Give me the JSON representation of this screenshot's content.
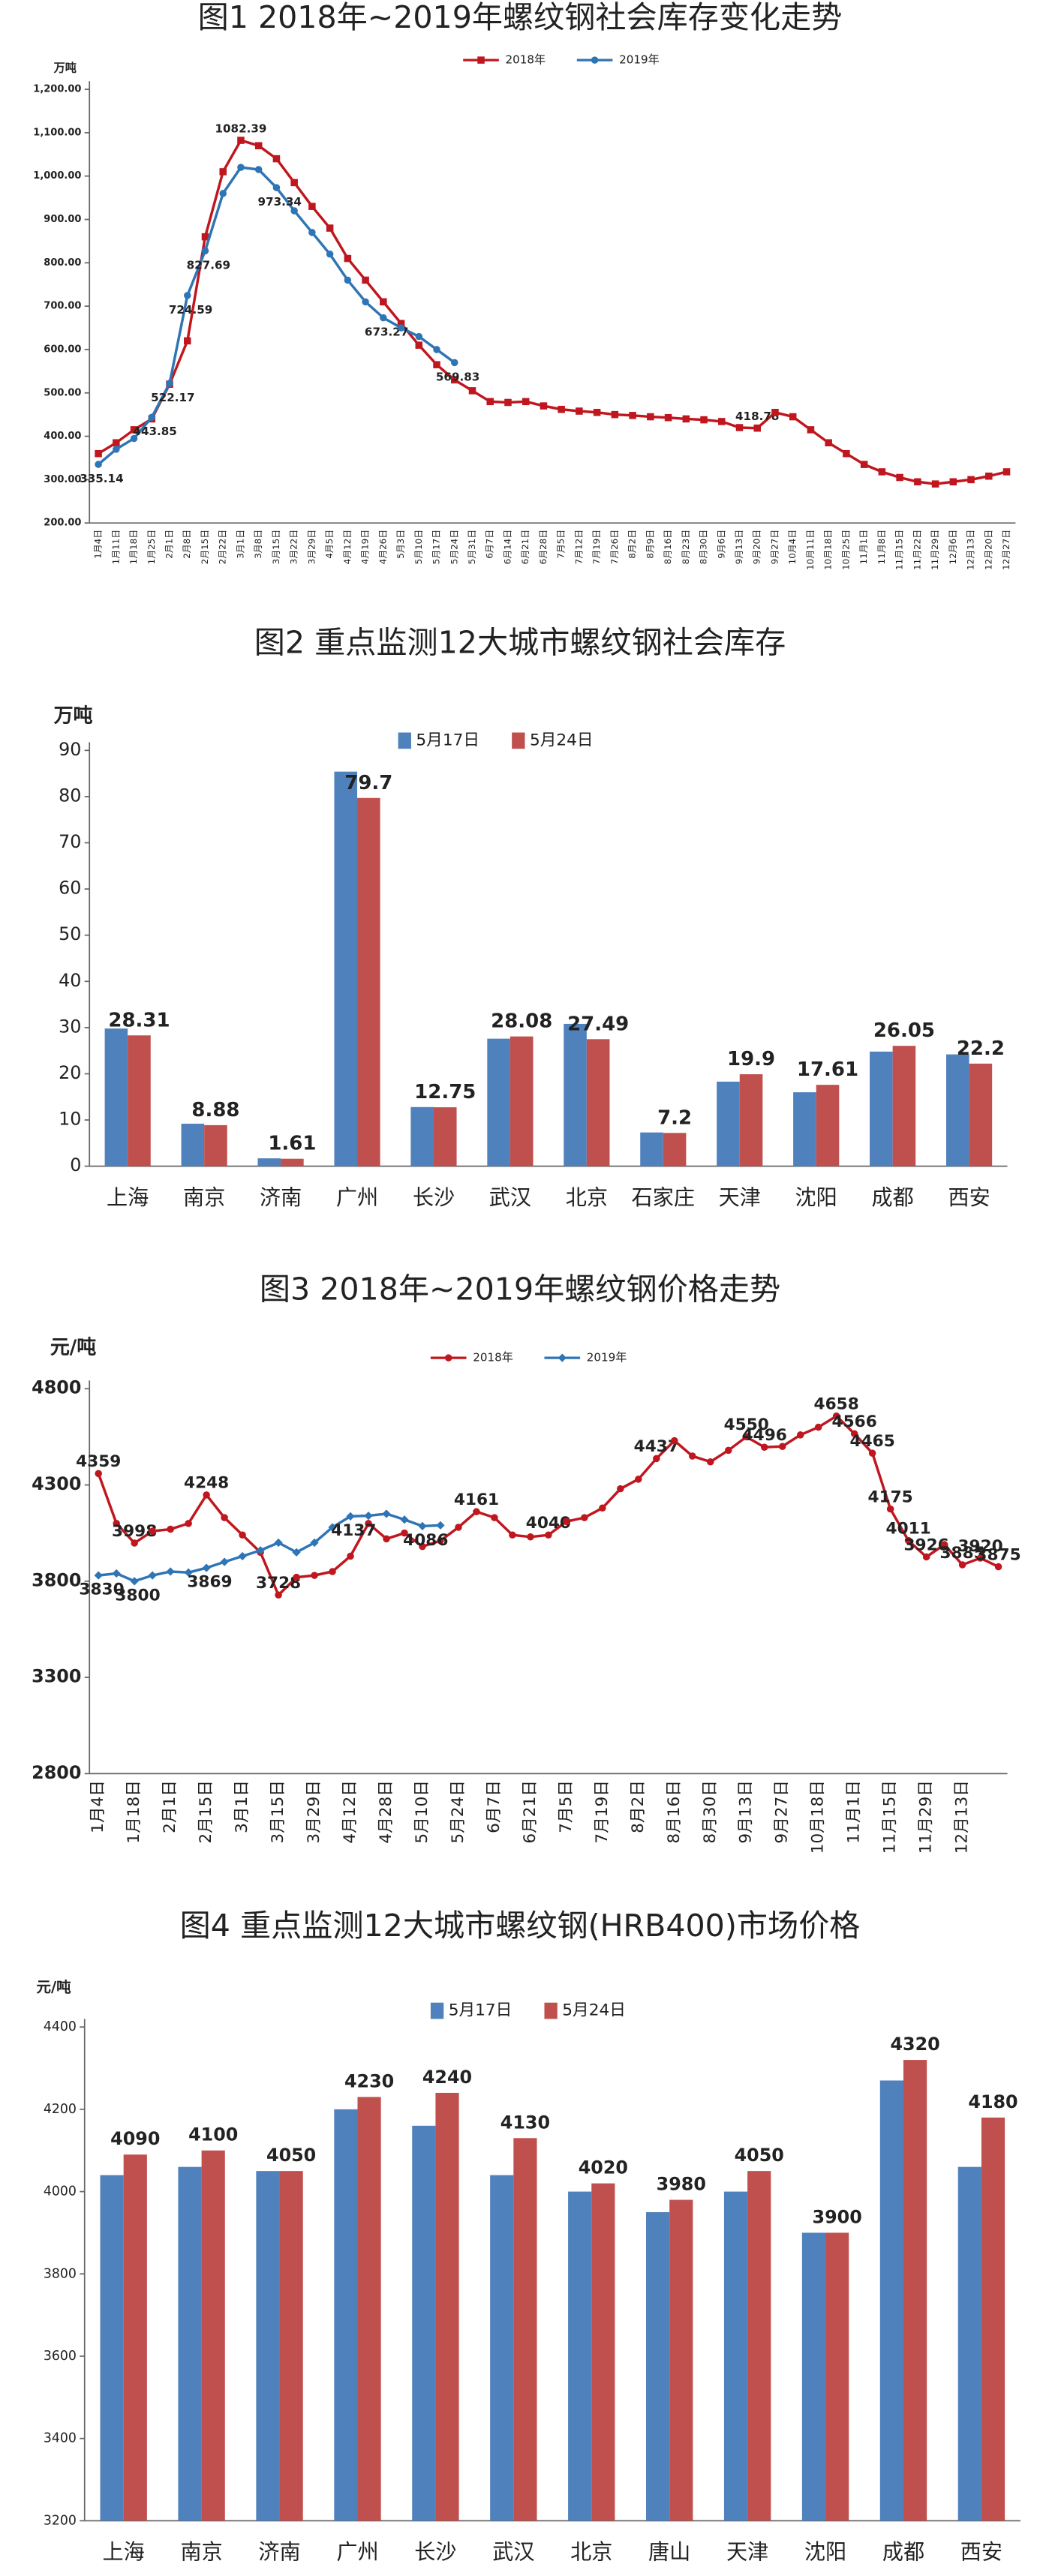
{
  "chart_data": [
    {
      "type": "line",
      "title": "图1 2018年~2019年螺纹钢社会库存变化走势",
      "y_unit": "万吨",
      "categories": [
        "1月4日",
        "1月11日",
        "1月18日",
        "1月25日",
        "2月1日",
        "2月8日",
        "2月15日",
        "2月22日",
        "3月1日",
        "3月8日",
        "3月15日",
        "3月22日",
        "3月29日",
        "4月5日",
        "4月12日",
        "4月19日",
        "4月26日",
        "5月3日",
        "5月10日",
        "5月17日",
        "5月24日",
        "5月31日",
        "6月7日",
        "6月14日",
        "6月21日",
        "6月28日",
        "7月5日",
        "7月12日",
        "7月19日",
        "7月26日",
        "8月2日",
        "8月9日",
        "8月16日",
        "8月23日",
        "8月30日",
        "9月6日",
        "9月13日",
        "9月20日",
        "9月27日",
        "10月4日",
        "10月11日",
        "10月18日",
        "10月25日",
        "11月1日",
        "11月8日",
        "11月15日",
        "11月22日",
        "11月29日",
        "12月6日",
        "12月13日",
        "12月20日",
        "12月27日"
      ],
      "series": [
        {
          "name": "2018年",
          "color": "#c0171f",
          "marker": "square",
          "values": [
            360,
            385,
            415,
            440,
            520,
            620,
            860,
            1010,
            1082.39,
            1070,
            1040,
            985,
            930,
            880,
            810,
            760,
            710,
            660,
            610,
            565,
            530,
            505,
            480,
            478,
            480,
            470,
            462,
            458,
            455,
            450,
            448,
            445,
            443,
            440,
            438,
            434,
            420,
            418.78,
            455,
            445,
            415,
            385,
            360,
            335,
            318,
            305,
            295,
            290,
            295,
            300,
            308,
            318
          ],
          "value_labels": [
            null,
            null,
            null,
            null,
            null,
            null,
            null,
            null,
            "1082.39",
            null,
            null,
            null,
            null,
            null,
            null,
            null,
            null,
            null,
            null,
            null,
            null,
            null,
            null,
            null,
            null,
            null,
            null,
            null,
            null,
            null,
            null,
            null,
            null,
            null,
            null,
            null,
            null,
            "418.78",
            null,
            null,
            null,
            null,
            null,
            null,
            null,
            null,
            null,
            null,
            null,
            null,
            null,
            null
          ]
        },
        {
          "name": "2019年",
          "color": "#2e75b6",
          "marker": "circle",
          "values": [
            335.14,
            370,
            395,
            443.85,
            522.17,
            724.59,
            827.69,
            960,
            1020,
            1015,
            973.34,
            920,
            870,
            820,
            760,
            710,
            673.27,
            650,
            630,
            600,
            569.83,
            null,
            null,
            null,
            null,
            null,
            null,
            null,
            null,
            null,
            null,
            null,
            null,
            null,
            null,
            null,
            null,
            null,
            null,
            null,
            null,
            null,
            null,
            null,
            null,
            null,
            null,
            null,
            null,
            null,
            null,
            null
          ],
          "value_labels": [
            "335.14",
            null,
            null,
            "443.85",
            "522.17",
            "724.59",
            "827.69",
            null,
            null,
            null,
            "973.34",
            null,
            null,
            null,
            null,
            null,
            "673.27",
            null,
            null,
            null,
            "569.83",
            null,
            null,
            null,
            null,
            null,
            null,
            null,
            null,
            null,
            null,
            null,
            null,
            null,
            null,
            null,
            null,
            null,
            null,
            null,
            null,
            null,
            null,
            null,
            null,
            null,
            null,
            null,
            null,
            null,
            null,
            null
          ]
        }
      ],
      "ylim": [
        200,
        1200
      ],
      "yticks": [
        {
          "value": 200,
          "label": "200.00"
        },
        {
          "value": 300,
          "label": "300.00"
        },
        {
          "value": 400,
          "label": "400.00"
        },
        {
          "value": 500,
          "label": "500.00"
        },
        {
          "value": 600,
          "label": "600.00"
        },
        {
          "value": 700,
          "label": "700.00"
        },
        {
          "value": 800,
          "label": "800.00"
        },
        {
          "value": 900,
          "label": "900.00"
        },
        {
          "value": 1000,
          "label": "1,000.00"
        },
        {
          "value": 1100,
          "label": "1,100.00"
        },
        {
          "value": 1200,
          "label": "1,200.00"
        }
      ]
    },
    {
      "type": "bar",
      "title": "图2 重点监测12大城市螺纹钢社会库存",
      "y_unit": "万吨",
      "categories": [
        "上海",
        "南京",
        "济南",
        "广州",
        "长沙",
        "武汉",
        "北京",
        "石家庄",
        "天津",
        "沈阳",
        "成都",
        "西安"
      ],
      "series": [
        {
          "name": "5月17日",
          "color": "#4f81bd",
          "values": [
            29.8,
            9.2,
            1.7,
            85.4,
            12.8,
            27.6,
            30.8,
            7.3,
            18.3,
            16.0,
            24.8,
            24.2
          ]
        },
        {
          "name": "5月24日",
          "color": "#c0504d",
          "show_labels": true,
          "values": [
            28.31,
            8.88,
            1.61,
            79.7,
            12.75,
            28.08,
            27.49,
            7.2,
            19.9,
            17.61,
            26.05,
            22.2
          ]
        }
      ],
      "ylim": [
        0,
        90
      ],
      "yticks": [
        0,
        10,
        20,
        30,
        40,
        50,
        60,
        70,
        80,
        90
      ]
    },
    {
      "type": "line",
      "title": "图3 2018年~2019年螺纹钢价格走势",
      "y_unit": "元/吨",
      "categories": [
        "1月4日",
        null,
        "1月18日",
        null,
        "2月1日",
        null,
        "2月15日",
        null,
        "3月1日",
        null,
        "3月15日",
        null,
        "3月29日",
        null,
        "4月12日",
        null,
        "4月28日",
        null,
        "5月10日",
        null,
        "5月24日",
        null,
        "6月7日",
        null,
        "6月21日",
        null,
        "7月5日",
        null,
        "7月19日",
        null,
        "8月2日",
        null,
        "8月16日",
        null,
        "8月30日",
        null,
        "9月13日",
        null,
        "9月27日",
        null,
        "10月18日",
        null,
        "11月1日",
        null,
        "11月15日",
        null,
        "11月29日",
        null,
        "12月13日",
        null,
        null
      ],
      "series": [
        {
          "name": "2018年",
          "color": "#c0171f",
          "marker": "circle",
          "values": [
            4359,
            4100,
            3998,
            4060,
            4070,
            4100,
            4248,
            4130,
            4040,
            3950,
            3728,
            3820,
            3830,
            3850,
            3930,
            4100,
            4020,
            4050,
            3980,
            4010,
            4080,
            4161,
            4130,
            4040,
            4030,
            4040,
            4110,
            4130,
            4180,
            4280,
            4330,
            4437,
            4530,
            4450,
            4420,
            4480,
            4550,
            4496,
            4500,
            4560,
            4600,
            4658,
            4566,
            4465,
            4175,
            4011,
            3926,
            3990,
            3885,
            3920,
            3875
          ],
          "value_labels": [
            "4359",
            null,
            "3998",
            null,
            null,
            null,
            "4248",
            null,
            null,
            null,
            "3728",
            null,
            null,
            null,
            null,
            null,
            null,
            null,
            null,
            null,
            null,
            "4161",
            null,
            null,
            null,
            "4040",
            null,
            null,
            null,
            null,
            null,
            "4437",
            null,
            null,
            null,
            null,
            "4550",
            "4496",
            null,
            null,
            null,
            "4658",
            "4566",
            "4465",
            "4175",
            "4011",
            "3926",
            null,
            "3885",
            "3920",
            "3875"
          ]
        },
        {
          "name": "2019年",
          "color": "#2e75b6",
          "marker": "diamond",
          "values": [
            3830,
            3840,
            3800,
            3830,
            3850,
            3845,
            3869,
            3900,
            3930,
            3960,
            4000,
            3950,
            4000,
            4080,
            4137,
            4140,
            4150,
            4120,
            4086,
            4090,
            null,
            null,
            null,
            null,
            null,
            null,
            null,
            null,
            null,
            null,
            null,
            null,
            null,
            null,
            null,
            null,
            null,
            null,
            null,
            null,
            null,
            null,
            null,
            null,
            null,
            null,
            null,
            null,
            null,
            null,
            null
          ],
          "value_labels": [
            "3830",
            null,
            "3800",
            null,
            null,
            null,
            "3869",
            null,
            null,
            null,
            null,
            null,
            null,
            null,
            "4137",
            null,
            null,
            null,
            "4086",
            null,
            null,
            null,
            null,
            null,
            null,
            null,
            null,
            null,
            null,
            null,
            null,
            null,
            null,
            null,
            null,
            null,
            null,
            null,
            null,
            null,
            null,
            null,
            null,
            null,
            null,
            null,
            null,
            null,
            null,
            null,
            null
          ]
        }
      ],
      "ylim": [
        2800,
        4800
      ],
      "yticks": [
        2800,
        3300,
        3800,
        4300,
        4800
      ]
    },
    {
      "type": "bar",
      "title": "图4 重点监测12大城市螺纹钢(HRB400)市场价格",
      "y_unit": "元/吨",
      "categories": [
        "上海",
        "南京",
        "济南",
        "广州",
        "长沙",
        "武汉",
        "北京",
        "唐山",
        "天津",
        "沈阳",
        "成都",
        "西安"
      ],
      "series": [
        {
          "name": "5月17日",
          "color": "#4f81bd",
          "values": [
            4040,
            4060,
            4050,
            4200,
            4160,
            4040,
            4000,
            3950,
            4000,
            3900,
            4270,
            4060
          ]
        },
        {
          "name": "5月24日",
          "color": "#c0504d",
          "show_labels": true,
          "values": [
            4090,
            4100,
            4050,
            4230,
            4240,
            4130,
            4020,
            3980,
            4050,
            3900,
            4320,
            4180
          ]
        }
      ],
      "ylim": [
        3200,
        4400
      ],
      "yticks": [
        3200,
        3400,
        3600,
        3800,
        4000,
        4200,
        4400
      ]
    }
  ]
}
